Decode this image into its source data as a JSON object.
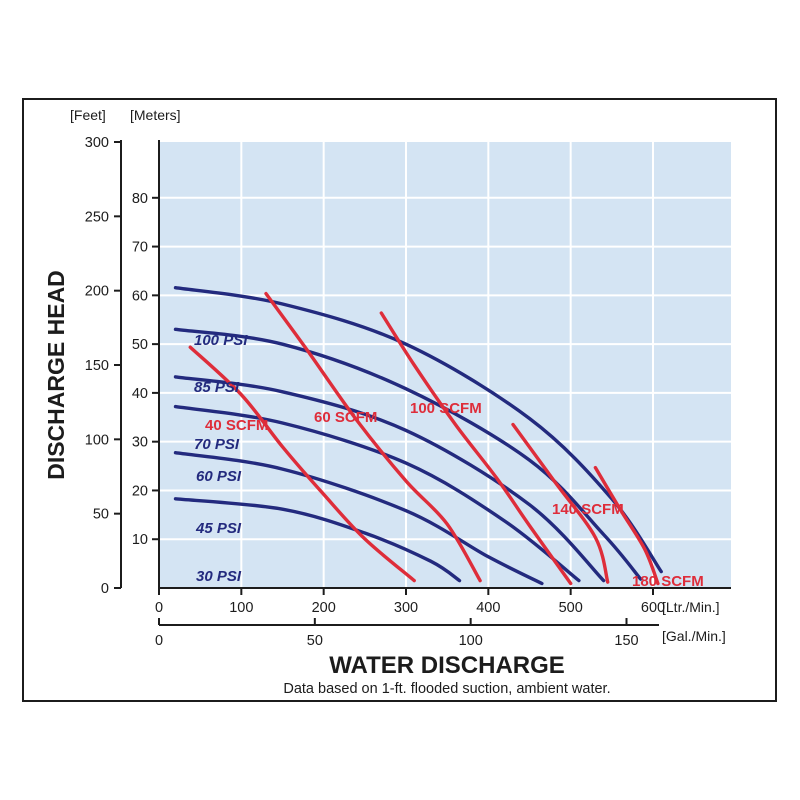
{
  "chart_data": {
    "type": "line",
    "title": "",
    "ylabel": "DISCHARGE HEAD",
    "xlabel": "WATER DISCHARGE",
    "footnote": "Data based on 1-ft. flooded suction, ambient water.",
    "y_feet": {
      "label": "[Feet]",
      "lim": [
        0,
        300
      ],
      "ticks": [
        0,
        50,
        100,
        150,
        200,
        250,
        300
      ]
    },
    "y_meters": {
      "label": "[Meters]",
      "lim": [
        0,
        91.44
      ],
      "ticks": [
        10,
        20,
        30,
        40,
        50,
        60,
        70,
        80
      ]
    },
    "x_liters": {
      "label": "[Ltr./Min.]",
      "lim": [
        0,
        695
      ],
      "ticks": [
        0,
        100,
        200,
        300,
        400,
        500,
        600
      ]
    },
    "x_gallons": {
      "label": "[Gal./Min.]",
      "lim": [
        0,
        183.6
      ],
      "ticks": [
        0,
        50,
        100,
        150
      ]
    },
    "grid": true,
    "colors": {
      "plot_bg": "#d4e4f3",
      "grid": "#ffffff",
      "psi": "#232a7e",
      "scfm": "#de2d3a",
      "axis": "#1c1c1c"
    },
    "x_units": "Ltr./Min.",
    "y_units": "Feet",
    "pressure_series": [
      {
        "name": "100 PSI",
        "points": [
          [
            20,
            202
          ],
          [
            150,
            191
          ],
          [
            300,
            164
          ],
          [
            450,
            114
          ],
          [
            550,
            60
          ],
          [
            610,
            11
          ]
        ]
      },
      {
        "name": "85 PSI",
        "points": [
          [
            20,
            174
          ],
          [
            150,
            164
          ],
          [
            300,
            134
          ],
          [
            450,
            86
          ],
          [
            540,
            36
          ],
          [
            585,
            6
          ]
        ]
      },
      {
        "name": "70 PSI",
        "points": [
          [
            20,
            142
          ],
          [
            150,
            132
          ],
          [
            300,
            106
          ],
          [
            450,
            56
          ],
          [
            540,
            5
          ]
        ]
      },
      {
        "name": "60 PSI",
        "points": [
          [
            20,
            122
          ],
          [
            150,
            111
          ],
          [
            300,
            84
          ],
          [
            420,
            45
          ],
          [
            510,
            5
          ]
        ]
      },
      {
        "name": "45 PSI",
        "points": [
          [
            20,
            91
          ],
          [
            150,
            80
          ],
          [
            300,
            52
          ],
          [
            400,
            21
          ],
          [
            465,
            3
          ]
        ]
      },
      {
        "name": "30 PSI",
        "points": [
          [
            20,
            60
          ],
          [
            150,
            53
          ],
          [
            250,
            37
          ],
          [
            330,
            18
          ],
          [
            365,
            5
          ]
        ]
      }
    ],
    "air_series": [
      {
        "name": "40 SCFM",
        "points": [
          [
            38,
            162
          ],
          [
            100,
            130
          ],
          [
            150,
            95
          ],
          [
            200,
            63
          ],
          [
            250,
            33
          ],
          [
            310,
            5
          ]
        ]
      },
      {
        "name": "60 SCFM",
        "points": [
          [
            130,
            198
          ],
          [
            180,
            160
          ],
          [
            240,
            113
          ],
          [
            300,
            72
          ],
          [
            350,
            43
          ],
          [
            390,
            5
          ]
        ]
      },
      {
        "name": "100 SCFM",
        "points": [
          [
            270,
            185
          ],
          [
            310,
            150
          ],
          [
            360,
            110
          ],
          [
            410,
            74
          ],
          [
            450,
            42
          ],
          [
            500,
            3
          ]
        ]
      },
      {
        "name": "140 SCFM",
        "points": [
          [
            430,
            110
          ],
          [
            480,
            72
          ],
          [
            530,
            34
          ],
          [
            545,
            4
          ]
        ]
      },
      {
        "name": "180 SCFM",
        "points": [
          [
            530,
            81
          ],
          [
            560,
            53
          ],
          [
            590,
            26
          ],
          [
            606,
            3
          ]
        ]
      }
    ]
  }
}
